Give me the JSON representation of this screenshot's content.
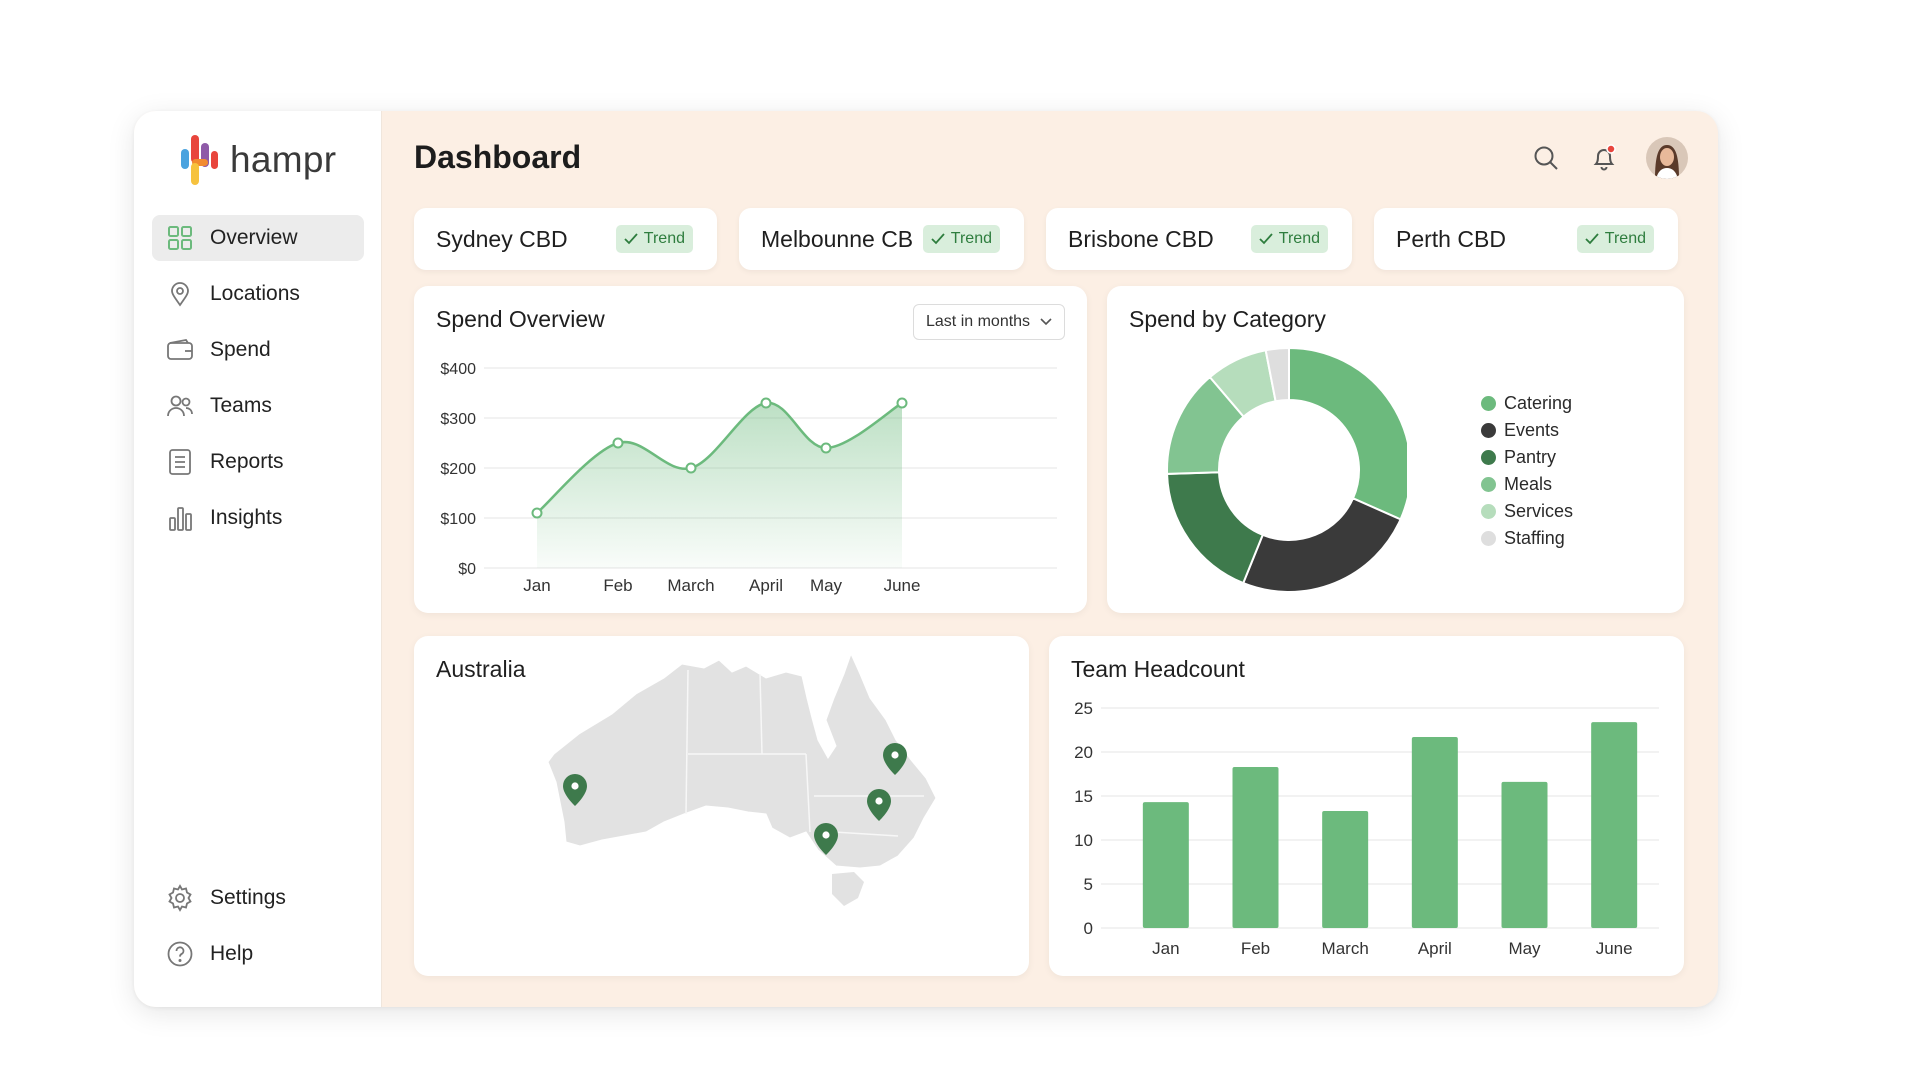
{
  "app": {
    "logo_text": "hampr",
    "page_title": "Dashboard"
  },
  "sidebar": {
    "items": [
      {
        "label": "Overview",
        "icon": "grid-icon",
        "active": true
      },
      {
        "label": "Locations",
        "icon": "map-pin-icon"
      },
      {
        "label": "Spend",
        "icon": "wallet-icon"
      },
      {
        "label": "Teams",
        "icon": "users-icon"
      },
      {
        "label": "Reports",
        "icon": "document-icon"
      },
      {
        "label": "Insights",
        "icon": "bar-chart-icon"
      }
    ],
    "bottom_items": [
      {
        "label": "Settings",
        "icon": "gear-icon"
      },
      {
        "label": "Help",
        "icon": "help-icon"
      }
    ]
  },
  "header": {
    "icons": [
      "search-icon",
      "bell-icon",
      "avatar"
    ],
    "notification_color": "#e8453c"
  },
  "locations": [
    {
      "name": "Sydney CBD",
      "badge": "Trend"
    },
    {
      "name": "Melbounne CB",
      "badge": "Trend"
    },
    {
      "name": "Brisbone CBD",
      "badge": "Trend"
    },
    {
      "name": "Perth CBD",
      "badge": "Trend"
    }
  ],
  "spend_overview": {
    "title": "Spend Overview",
    "filter_label": "Last in months"
  },
  "spend_by_category": {
    "title": "Spend by Category",
    "legend": [
      {
        "label": "Catering",
        "color": "#6cba7d"
      },
      {
        "label": "Events",
        "color": "#3a3a3a"
      },
      {
        "label": "Pantry",
        "color": "#3e7a4c"
      },
      {
        "label": "Meals",
        "color": "#82c491"
      },
      {
        "label": "Services",
        "color": "#b6ddbc"
      },
      {
        "label": "Staffing",
        "color": "#dedede"
      }
    ]
  },
  "australia": {
    "title": "Australia",
    "pins": [
      "Perth",
      "Brisbane",
      "Sydney",
      "Melbourne"
    ]
  },
  "team_headcount": {
    "title": "Team Headcount"
  },
  "colors": {
    "accent": "#6cba7d",
    "accent_dark": "#3e7a4c",
    "trend_bg": "#d9eedc",
    "panel_bg": "#fcefe4"
  },
  "chart_data": [
    {
      "type": "area",
      "title": "Spend Overview",
      "categories": [
        "Jan",
        "Feb",
        "March",
        "April",
        "May",
        "June"
      ],
      "values": [
        110,
        250,
        200,
        330,
        240,
        330
      ],
      "ylim": [
        0,
        400
      ],
      "yticks": [
        "$0",
        "$100",
        "$200",
        "$300",
        "$400"
      ],
      "grid": true
    },
    {
      "type": "pie",
      "title": "Spend by Category",
      "labels": [
        "Catering",
        "Events",
        "Pantry",
        "Meals",
        "Services",
        "Staffing"
      ],
      "values": [
        31,
        24,
        18,
        14,
        8,
        3
      ],
      "donut": true,
      "legend": "right"
    },
    {
      "type": "bar",
      "title": "Team Headcount",
      "categories": [
        "Jan",
        "Feb",
        "March",
        "April",
        "May",
        "June"
      ],
      "values": [
        14.3,
        18.3,
        13.3,
        21.7,
        16.6,
        23.4
      ],
      "ylim": [
        0,
        25
      ],
      "yticks": [
        "0",
        "5",
        "10",
        "15",
        "20",
        "25"
      ],
      "grid": true
    }
  ]
}
